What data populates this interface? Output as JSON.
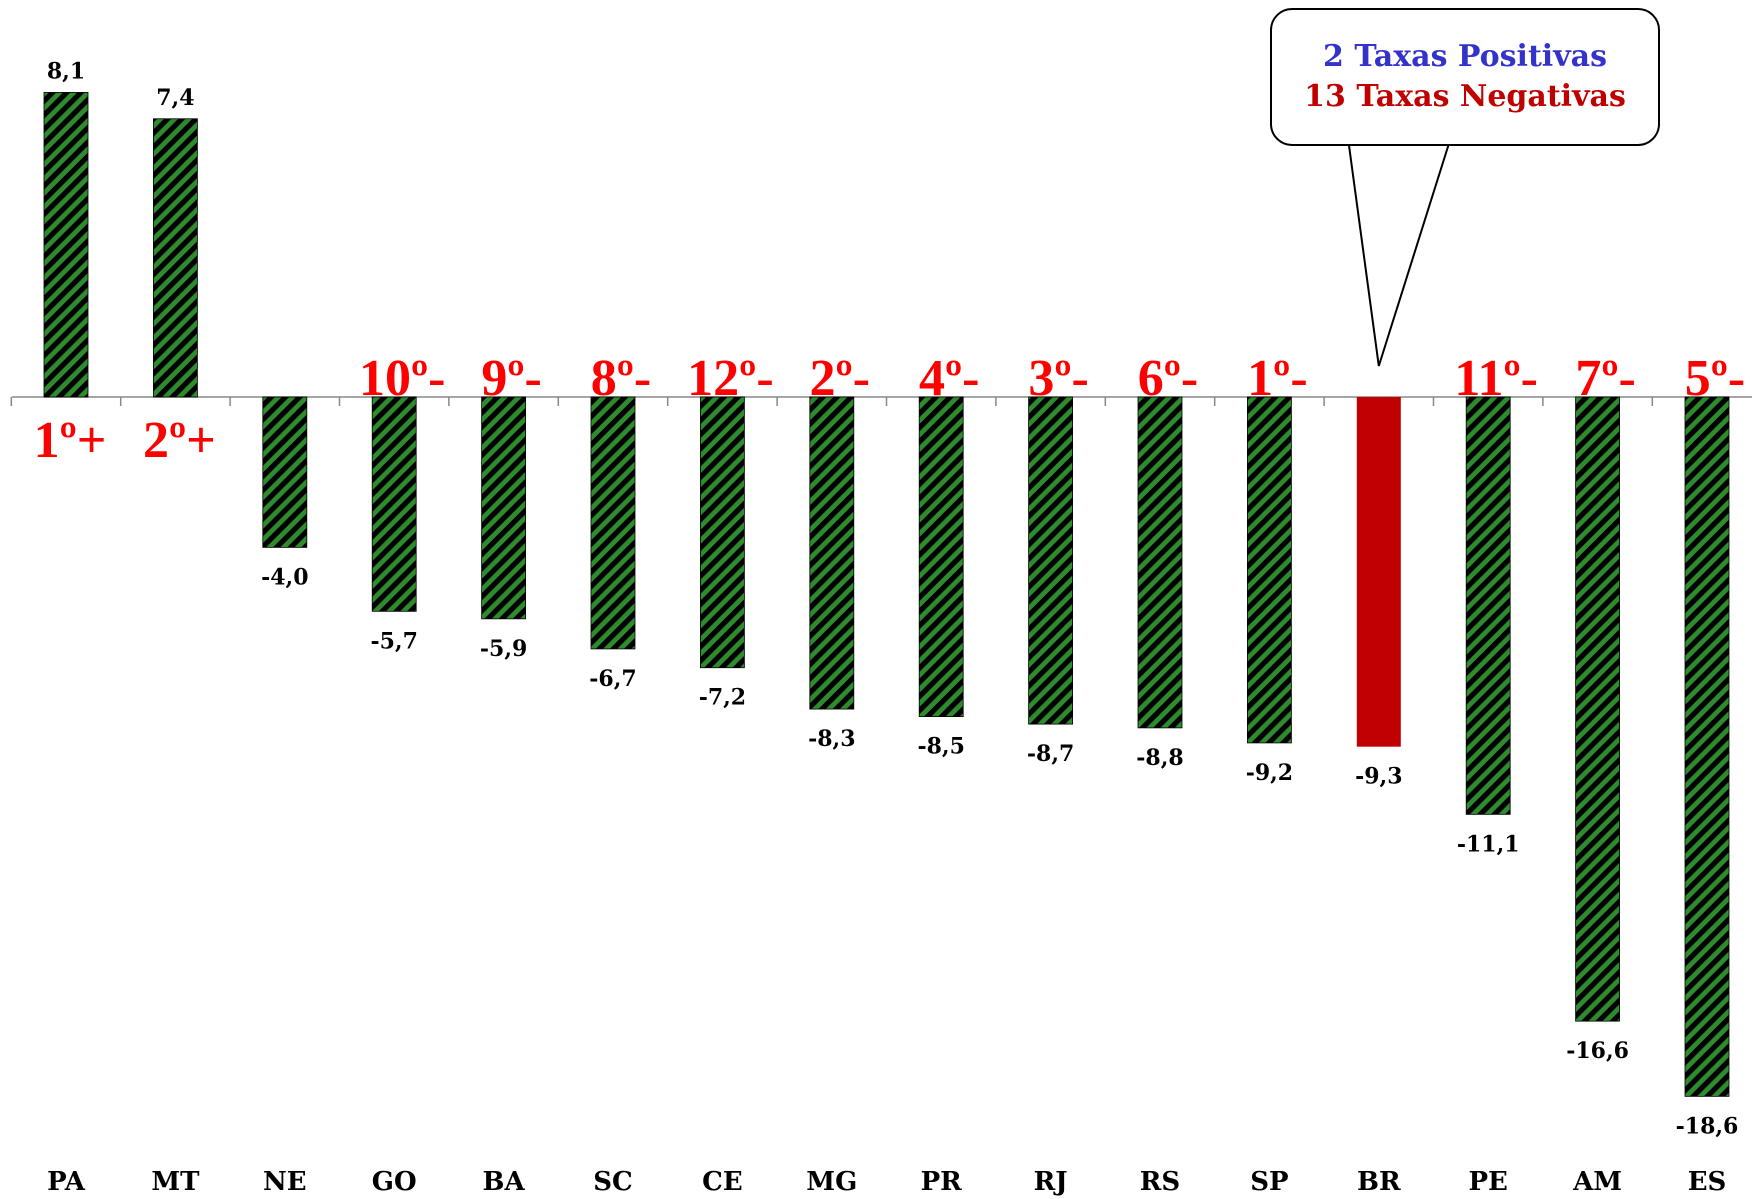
{
  "chart_data": {
    "type": "bar",
    "categories": [
      "PA",
      "MT",
      "NE",
      "GO",
      "BA",
      "SC",
      "CE",
      "MG",
      "PR",
      "RJ",
      "RS",
      "SP",
      "BR",
      "PE",
      "AM",
      "ES"
    ],
    "values": [
      8.1,
      7.4,
      -4.0,
      -5.7,
      -5.9,
      -6.7,
      -7.2,
      -8.3,
      -8.5,
      -8.7,
      -8.8,
      -9.2,
      -9.3,
      -11.1,
      -16.6,
      -18.6
    ],
    "value_labels": [
      "8,1",
      "7,4",
      "-4,0",
      "-5,7",
      "-5,9",
      "-6,7",
      "-7,2",
      "-8,3",
      "-8,5",
      "-8,7",
      "-8,8",
      "-9,2",
      "-9,3",
      "-11,1",
      "-16,6",
      "-18,6"
    ],
    "rank_labels": [
      "1º+",
      "2º+",
      "",
      "10º-",
      "9º-",
      "8º-",
      "12º-",
      "2º-",
      "4º-",
      "3º-",
      "6º-",
      "1º-",
      "",
      "11º-",
      "7º-",
      "5º-"
    ],
    "highlight_category": "BR",
    "ylim": [
      -18.6,
      8.1
    ],
    "grid": false,
    "legend": "none",
    "colors": {
      "bar_fill": "#2e8b2e",
      "bar_hatch": "#000000",
      "highlight_fill": "#c00000",
      "rank_text": "#ff0000",
      "axis": "#888888"
    }
  },
  "callout": {
    "positive_text": "2 Taxas Positivas",
    "negative_text": "13 Taxas Negativas",
    "positive_color": "#3333cc",
    "negative_color": "#c00000"
  }
}
